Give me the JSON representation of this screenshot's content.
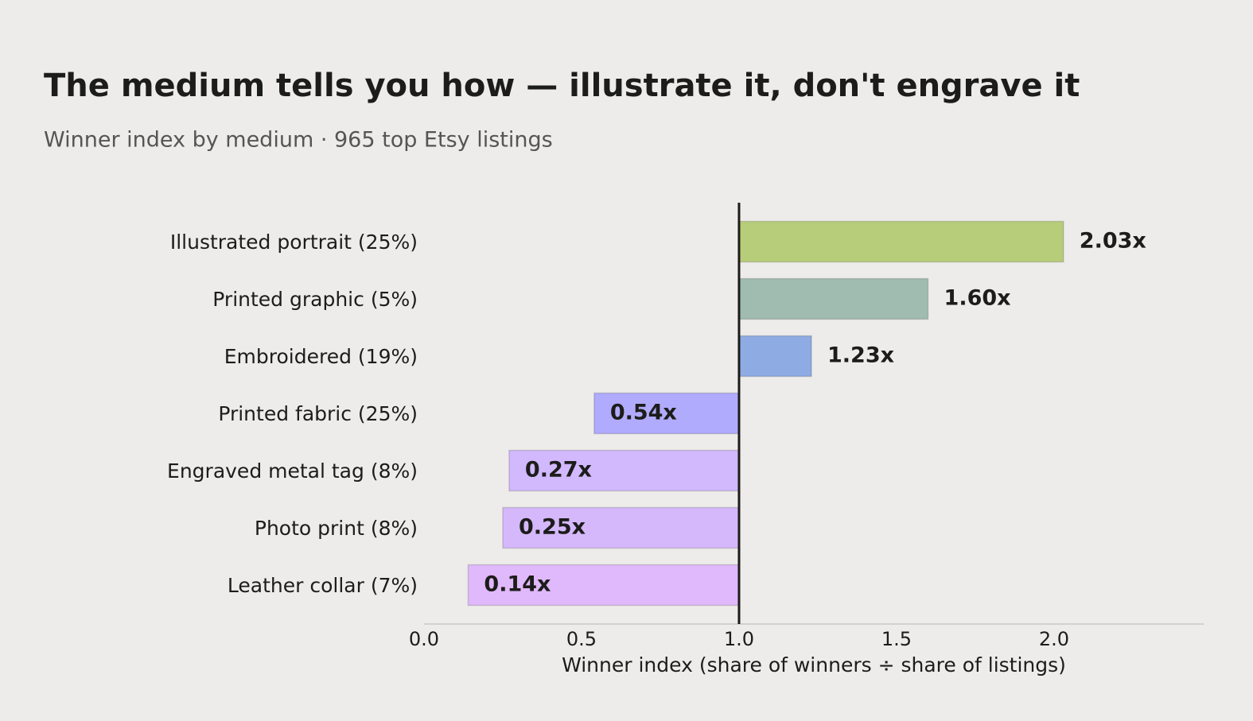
{
  "chart_data": {
    "type": "hbar",
    "title": "The medium tells you how — illustrate it, don't engrave it",
    "subtitle": "Winner index by medium · 965 top Etsy listings",
    "x_label": "Winner index  (share of winners ÷ share of listings)",
    "categories": [
      "Illustrated portrait  (25%)",
      "Printed graphic  (5%)",
      "Embroidered  (19%)",
      "Printed fabric  (25%)",
      "Engraved metal tag  (8%)",
      "Photo print  (8%)",
      "Leather collar  (7%)"
    ],
    "values": [
      2.03,
      1.6,
      1.23,
      0.54,
      0.27,
      0.25,
      0.14
    ],
    "value_labels": [
      "2.03x",
      "1.60x",
      "1.23x",
      "0.54x",
      "0.27x",
      "0.25x",
      "0.14x"
    ],
    "colors": [
      "#b8cd7a",
      "#a0bbb0",
      "#8eabe3",
      "#b0abfc",
      "#d2b8fc",
      "#d5b8fc",
      "#e0b8fc"
    ],
    "baseline": 1,
    "xlim": [
      0,
      2.475
    ],
    "xticks": [
      {
        "value": 0,
        "label": "0.0"
      },
      0.5,
      {
        "value": 1,
        "label": "1.0"
      },
      1.5,
      {
        "value": 2,
        "label": "2.0"
      }
    ]
  }
}
